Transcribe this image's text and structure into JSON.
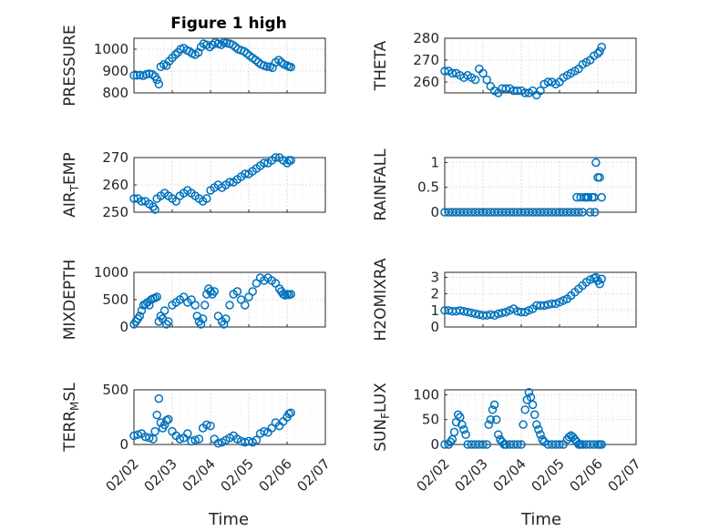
{
  "figure": {
    "xlabel": "Time",
    "x_tick_labels": [
      "02/02",
      "02/03",
      "02/04",
      "02/05",
      "02/06",
      "02/07"
    ],
    "marker_color": "#0072BD"
  },
  "chart_data": [
    {
      "type": "scatter",
      "column": 0,
      "row": 0,
      "title": "Figure 1 high",
      "ylabel": "PRESSURE",
      "xlim": [
        0,
        5
      ],
      "ylim": [
        800,
        1050
      ],
      "yticks": [
        800,
        900,
        1000
      ],
      "ytick_labels": [
        "800",
        "900",
        "1000"
      ],
      "x": [
        0.0,
        0.08,
        0.16,
        0.24,
        0.32,
        0.4,
        0.48,
        0.55,
        0.6,
        0.65,
        0.7,
        0.78,
        0.85,
        0.92,
        1.0,
        1.08,
        1.15,
        1.22,
        1.3,
        1.38,
        1.45,
        1.52,
        1.6,
        1.68,
        1.75,
        1.82,
        1.9,
        1.98,
        2.05,
        2.12,
        2.2,
        2.28,
        2.35,
        2.42,
        2.5,
        2.58,
        2.65,
        2.72,
        2.8,
        2.88,
        2.95,
        3.02,
        3.1,
        3.18,
        3.25,
        3.32,
        3.4,
        3.48,
        3.55,
        3.62,
        3.7,
        3.78,
        3.85,
        3.92,
        4.0,
        4.05,
        4.1
      ],
      "y": [
        880,
        880,
        882,
        878,
        885,
        888,
        885,
        875,
        860,
        840,
        920,
        930,
        925,
        945,
        960,
        975,
        985,
        1000,
        1005,
        995,
        990,
        980,
        975,
        985,
        1010,
        1025,
        1020,
        1010,
        1020,
        1030,
        1025,
        1020,
        1030,
        1028,
        1025,
        1020,
        1010,
        1000,
        995,
        990,
        980,
        970,
        960,
        950,
        940,
        930,
        925,
        920,
        920,
        915,
        940,
        950,
        940,
        930,
        925,
        920,
        918
      ]
    },
    {
      "type": "scatter",
      "column": 1,
      "row": 0,
      "ylabel": "THETA",
      "xlim": [
        0,
        5
      ],
      "ylim": [
        255,
        280
      ],
      "yticks": [
        260,
        270,
        280
      ],
      "ytick_labels": [
        "260",
        "270",
        "280"
      ],
      "x": [
        0.0,
        0.1,
        0.2,
        0.3,
        0.4,
        0.5,
        0.6,
        0.7,
        0.8,
        0.9,
        1.0,
        1.1,
        1.2,
        1.3,
        1.4,
        1.5,
        1.6,
        1.7,
        1.8,
        1.9,
        2.0,
        2.1,
        2.2,
        2.3,
        2.4,
        2.5,
        2.6,
        2.7,
        2.8,
        2.9,
        3.0,
        3.1,
        3.2,
        3.3,
        3.4,
        3.5,
        3.6,
        3.7,
        3.8,
        3.9,
        4.0,
        4.05,
        4.1
      ],
      "y": [
        265,
        265,
        264,
        264,
        263,
        262,
        263,
        262,
        261,
        266,
        264,
        261,
        258,
        256,
        255,
        257,
        257,
        257,
        256,
        256,
        256,
        255,
        255,
        256,
        254,
        256,
        259,
        260,
        260,
        259,
        260,
        262,
        263,
        264,
        265,
        266,
        268,
        269,
        270,
        272,
        273,
        274,
        276
      ]
    },
    {
      "type": "scatter",
      "column": 0,
      "row": 1,
      "ylabel": "AIR_TEMP",
      "ylabel_sub": "T",
      "xlim": [
        0,
        5
      ],
      "ylim": [
        250,
        270
      ],
      "yticks": [
        250,
        260,
        270
      ],
      "ytick_labels": [
        "250",
        "260",
        "270"
      ],
      "x": [
        0.0,
        0.1,
        0.2,
        0.3,
        0.4,
        0.5,
        0.55,
        0.6,
        0.7,
        0.8,
        0.9,
        1.0,
        1.1,
        1.2,
        1.3,
        1.4,
        1.5,
        1.6,
        1.7,
        1.8,
        1.9,
        2.0,
        2.1,
        2.2,
        2.3,
        2.4,
        2.5,
        2.6,
        2.7,
        2.8,
        2.9,
        3.0,
        3.1,
        3.2,
        3.3,
        3.4,
        3.5,
        3.6,
        3.7,
        3.8,
        3.9,
        4.0,
        4.05,
        4.1
      ],
      "y": [
        255,
        255,
        254,
        254,
        253,
        252,
        251,
        255,
        256,
        257,
        256,
        255,
        254,
        256,
        257,
        258,
        257,
        256,
        255,
        254,
        255,
        258,
        259,
        260,
        259,
        260,
        261,
        261,
        262,
        263,
        264,
        264,
        265,
        266,
        267,
        268,
        268,
        269,
        270,
        270,
        269,
        268,
        269,
        269
      ]
    },
    {
      "type": "scatter",
      "column": 1,
      "row": 1,
      "ylabel": "RAINFALL",
      "xlim": [
        0,
        5
      ],
      "ylim": [
        0,
        1.1
      ],
      "yticks": [
        0,
        0.5,
        1
      ],
      "ytick_labels": [
        "0",
        "0.5",
        "1"
      ],
      "x": [
        0.0,
        0.1,
        0.2,
        0.3,
        0.4,
        0.5,
        0.6,
        0.7,
        0.8,
        0.9,
        1.0,
        1.1,
        1.2,
        1.3,
        1.4,
        1.5,
        1.6,
        1.7,
        1.8,
        1.9,
        2.0,
        2.1,
        2.2,
        2.3,
        2.4,
        2.5,
        2.6,
        2.7,
        2.8,
        2.9,
        3.0,
        3.1,
        3.2,
        3.3,
        3.4,
        3.45,
        3.5,
        3.55,
        3.6,
        3.65,
        3.7,
        3.75,
        3.8,
        3.85,
        3.9,
        3.92,
        3.95,
        4.0,
        4.05,
        4.1
      ],
      "y": [
        0,
        0,
        0,
        0,
        0,
        0,
        0,
        0,
        0,
        0,
        0,
        0,
        0,
        0,
        0,
        0,
        0,
        0,
        0,
        0,
        0,
        0,
        0,
        0,
        0,
        0,
        0,
        0,
        0,
        0,
        0,
        0,
        0,
        0,
        0,
        0.3,
        0,
        0.3,
        0,
        0.3,
        0.3,
        0.3,
        0,
        0.3,
        0.3,
        0,
        1.0,
        0.7,
        0.7,
        0.3
      ]
    },
    {
      "type": "scatter",
      "column": 0,
      "row": 2,
      "ylabel": "MIXDEPTH",
      "xlim": [
        0,
        5
      ],
      "ylim": [
        0,
        1000
      ],
      "yticks": [
        0,
        500,
        1000
      ],
      "ytick_labels": [
        "0",
        "500",
        "1000"
      ],
      "x": [
        0.0,
        0.05,
        0.1,
        0.15,
        0.2,
        0.25,
        0.3,
        0.35,
        0.4,
        0.45,
        0.5,
        0.55,
        0.6,
        0.65,
        0.7,
        0.75,
        0.8,
        0.85,
        0.9,
        1.0,
        1.1,
        1.2,
        1.3,
        1.4,
        1.5,
        1.6,
        1.65,
        1.7,
        1.75,
        1.8,
        1.85,
        1.9,
        1.95,
        2.0,
        2.05,
        2.1,
        2.2,
        2.3,
        2.35,
        2.4,
        2.5,
        2.6,
        2.7,
        2.8,
        2.9,
        3.0,
        3.1,
        3.2,
        3.3,
        3.4,
        3.5,
        3.6,
        3.7,
        3.8,
        3.85,
        3.9,
        3.95,
        4.0,
        4.05,
        4.1
      ],
      "y": [
        50,
        100,
        150,
        200,
        300,
        400,
        420,
        450,
        400,
        500,
        520,
        530,
        550,
        100,
        200,
        150,
        300,
        50,
        100,
        400,
        450,
        500,
        550,
        450,
        500,
        400,
        200,
        100,
        50,
        150,
        400,
        600,
        700,
        650,
        600,
        650,
        200,
        100,
        50,
        150,
        400,
        600,
        650,
        500,
        400,
        550,
        650,
        800,
        900,
        850,
        900,
        850,
        800,
        700,
        650,
        600,
        580,
        600,
        590,
        600
      ]
    },
    {
      "type": "scatter",
      "column": 1,
      "row": 2,
      "ylabel": "H2OMIXRA",
      "xlim": [
        0,
        5
      ],
      "ylim": [
        0,
        3.3
      ],
      "yticks": [
        0,
        1,
        2,
        3
      ],
      "ytick_labels": [
        "0",
        "1",
        "2",
        "3"
      ],
      "x": [
        0.0,
        0.1,
        0.2,
        0.3,
        0.4,
        0.5,
        0.6,
        0.7,
        0.8,
        0.9,
        1.0,
        1.1,
        1.2,
        1.3,
        1.4,
        1.5,
        1.6,
        1.7,
        1.8,
        1.9,
        2.0,
        2.1,
        2.2,
        2.3,
        2.4,
        2.5,
        2.6,
        2.7,
        2.8,
        2.9,
        3.0,
        3.1,
        3.2,
        3.3,
        3.4,
        3.5,
        3.6,
        3.7,
        3.8,
        3.9,
        3.95,
        4.0,
        4.05,
        4.1
      ],
      "y": [
        1.0,
        1.0,
        0.95,
        0.95,
        1.0,
        0.95,
        0.9,
        0.85,
        0.8,
        0.75,
        0.7,
        0.7,
        0.75,
        0.7,
        0.8,
        0.85,
        0.9,
        1.0,
        1.1,
        0.95,
        0.9,
        0.9,
        1.0,
        1.1,
        1.3,
        1.3,
        1.3,
        1.35,
        1.4,
        1.4,
        1.5,
        1.6,
        1.7,
        1.9,
        2.1,
        2.3,
        2.5,
        2.7,
        2.85,
        2.95,
        3.0,
        2.8,
        2.6,
        2.9
      ]
    },
    {
      "type": "scatter",
      "column": 0,
      "row": 3,
      "ylabel": "TERR_MSL",
      "ylabel_sub": "M",
      "xlim": [
        0,
        5
      ],
      "ylim": [
        0,
        500
      ],
      "yticks": [
        0,
        500
      ],
      "ytick_labels": [
        "0",
        "500"
      ],
      "x": [
        0.0,
        0.1,
        0.2,
        0.3,
        0.4,
        0.5,
        0.55,
        0.6,
        0.65,
        0.7,
        0.75,
        0.8,
        0.85,
        0.9,
        1.0,
        1.1,
        1.2,
        1.3,
        1.4,
        1.5,
        1.6,
        1.7,
        1.8,
        1.9,
        2.0,
        2.1,
        2.2,
        2.3,
        2.4,
        2.5,
        2.6,
        2.7,
        2.8,
        2.9,
        3.0,
        3.1,
        3.2,
        3.3,
        3.4,
        3.5,
        3.6,
        3.7,
        3.8,
        3.9,
        4.0,
        4.05,
        4.1
      ],
      "y": [
        80,
        90,
        100,
        70,
        60,
        50,
        120,
        270,
        420,
        200,
        150,
        180,
        220,
        230,
        120,
        80,
        50,
        60,
        100,
        30,
        40,
        50,
        150,
        180,
        170,
        50,
        10,
        20,
        40,
        60,
        80,
        50,
        30,
        20,
        30,
        20,
        40,
        100,
        120,
        110,
        150,
        200,
        170,
        210,
        250,
        280,
        290
      ]
    },
    {
      "type": "scatter",
      "column": 1,
      "row": 3,
      "ylabel": "SUN_FLUX",
      "ylabel_sub": "F",
      "xlim": [
        0,
        5
      ],
      "ylim": [
        0,
        110
      ],
      "yticks": [
        0,
        50,
        100
      ],
      "ytick_labels": [
        "0",
        "50",
        "100"
      ],
      "x": [
        0.0,
        0.1,
        0.15,
        0.2,
        0.25,
        0.3,
        0.35,
        0.4,
        0.45,
        0.5,
        0.55,
        0.6,
        0.7,
        0.8,
        0.9,
        1.0,
        1.1,
        1.15,
        1.2,
        1.25,
        1.3,
        1.35,
        1.4,
        1.45,
        1.5,
        1.55,
        1.6,
        1.7,
        1.8,
        1.9,
        2.0,
        2.05,
        2.1,
        2.15,
        2.2,
        2.25,
        2.3,
        2.35,
        2.4,
        2.45,
        2.5,
        2.55,
        2.6,
        2.7,
        2.8,
        2.9,
        3.0,
        3.1,
        3.2,
        3.25,
        3.3,
        3.35,
        3.4,
        3.45,
        3.5,
        3.55,
        3.6,
        3.7,
        3.8,
        3.9,
        4.0,
        4.05,
        4.1
      ],
      "y": [
        0,
        0,
        5,
        10,
        25,
        45,
        60,
        55,
        40,
        30,
        20,
        0,
        0,
        0,
        0,
        0,
        0,
        40,
        50,
        70,
        80,
        50,
        20,
        10,
        5,
        0,
        0,
        0,
        0,
        0,
        0,
        40,
        70,
        90,
        105,
        95,
        80,
        60,
        40,
        30,
        20,
        10,
        5,
        0,
        0,
        0,
        0,
        0,
        10,
        15,
        18,
        15,
        10,
        5,
        0,
        0,
        0,
        0,
        0,
        0,
        0,
        0,
        0
      ]
    }
  ]
}
